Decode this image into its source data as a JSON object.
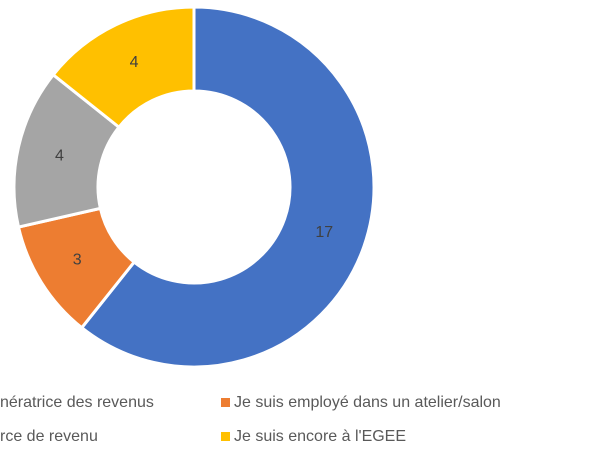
{
  "chart_data": {
    "type": "donut",
    "categories": [
      "nératrice des revenus",
      "Je suis employé dans un atelier/salon",
      "rce de revenu",
      "Je suis encore à l'EGEE"
    ],
    "values": [
      17,
      3,
      4,
      4
    ],
    "colors": [
      "#4472c4",
      "#ed7d31",
      "#a5a5a5",
      "#ffc000"
    ],
    "legend": "bottom"
  }
}
